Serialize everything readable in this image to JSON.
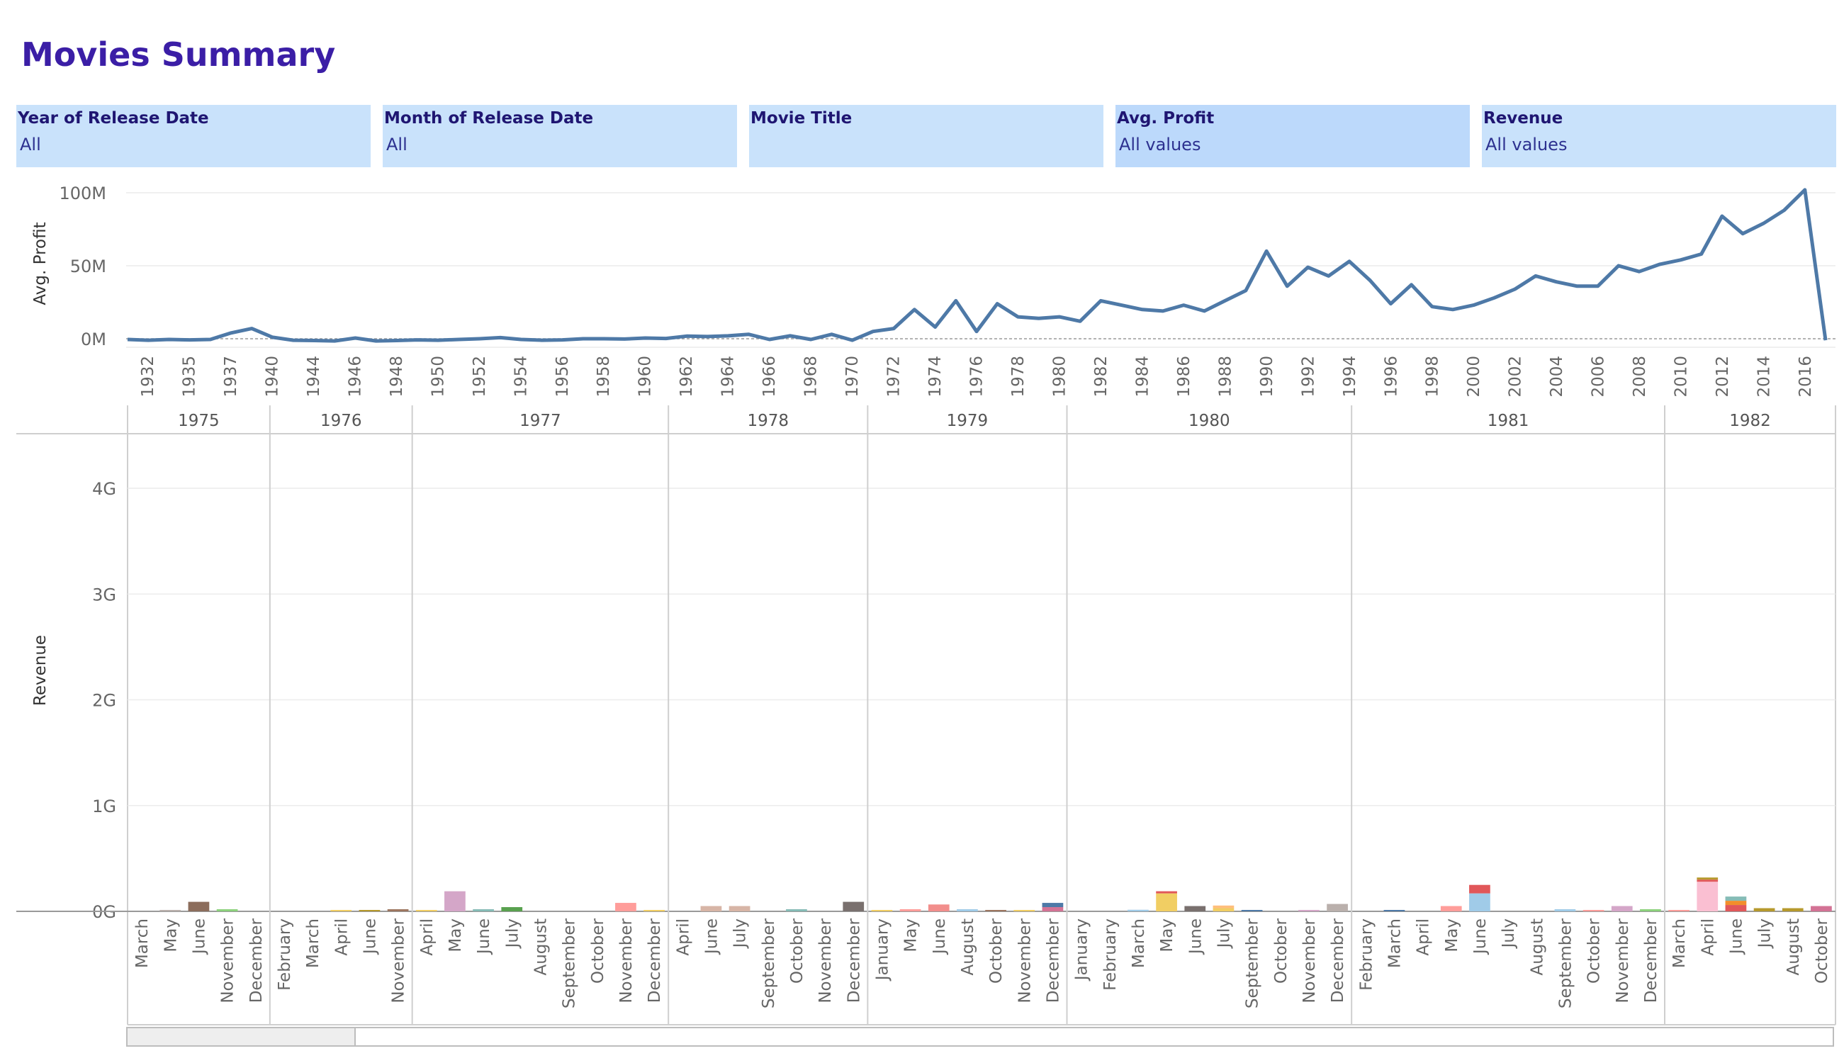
{
  "page": {
    "title": "Movies Summary"
  },
  "filters": [
    {
      "label": "Year of Release Date",
      "value": "All"
    },
    {
      "label": "Month of Release Date",
      "value": "All"
    },
    {
      "label": "Movie Title",
      "value": ""
    },
    {
      "label": "Avg. Profit",
      "value": "All values"
    },
    {
      "label": "Revenue",
      "value": "All values"
    }
  ],
  "colors": {
    "line": "#4e79a7",
    "title": "#3b1ea6",
    "filter_bg": "#c9e2fb"
  },
  "chart_data": [
    {
      "type": "line",
      "ylabel": "Avg. Profit",
      "xlabel": "",
      "ylim": [
        -2,
        105
      ],
      "yticks": [
        0,
        50,
        100
      ],
      "ytick_labels": [
        "0M",
        "50M",
        "100M"
      ],
      "xtick_labels": [
        "1932",
        "1935",
        "1937",
        "1940",
        "1944",
        "1946",
        "1948",
        "1950",
        "1952",
        "1954",
        "1956",
        "1958",
        "1960",
        "1962",
        "1964",
        "1966",
        "1968",
        "1970",
        "1972",
        "1974",
        "1976",
        "1978",
        "1980",
        "1982",
        "1984",
        "1986",
        "1988",
        "1990",
        "1992",
        "1994",
        "1996",
        "1998",
        "2000",
        "2002",
        "2004",
        "2006",
        "2008",
        "2010",
        "2012",
        "2014",
        "2016"
      ],
      "series": [
        {
          "values": [
            -0.5,
            -1,
            -0.5,
            -0.8,
            -0.5,
            4,
            7,
            1,
            -1,
            -1.2,
            -1.5,
            0.5,
            -1.5,
            -1.2,
            -0.8,
            -1,
            -0.5,
            0,
            0.8,
            -0.5,
            -1,
            -0.8,
            0,
            0,
            -0.2,
            0.5,
            0.2,
            1.8,
            1.5,
            2,
            3,
            -0.5,
            2,
            -0.5,
            3,
            -1,
            5,
            7,
            20,
            8,
            26,
            5,
            24,
            15,
            14,
            15,
            12,
            26,
            23,
            20,
            19,
            23,
            19,
            26,
            33,
            60,
            36,
            49,
            43,
            53,
            40,
            24,
            37,
            22,
            20,
            23,
            28,
            34,
            43,
            39,
            36,
            36,
            50,
            46,
            51,
            54,
            58,
            84,
            72,
            79,
            88,
            102,
            -1
          ],
          "unit": "M"
        }
      ]
    },
    {
      "type": "bar",
      "stacked": true,
      "ylabel": "Revenue",
      "ylim": [
        0,
        4.2
      ],
      "yticks": [
        0,
        1,
        2,
        3,
        4
      ],
      "ytick_labels": [
        "0G",
        "1G",
        "2G",
        "3G",
        "4G"
      ],
      "groups": [
        {
          "year": "1975",
          "months": [
            {
              "label": "March",
              "segments": []
            },
            {
              "label": "May",
              "segments": [
                {
                  "value": 0.005,
                  "color": "#bab0ac"
                }
              ]
            },
            {
              "label": "June",
              "segments": [
                {
                  "value": 0.09,
                  "color": "#8c6d5c"
                }
              ]
            },
            {
              "label": "November",
              "segments": [
                {
                  "value": 0.02,
                  "color": "#8cd17d"
                }
              ]
            },
            {
              "label": "December",
              "segments": []
            }
          ]
        },
        {
          "year": "1976",
          "months": [
            {
              "label": "February",
              "segments": []
            },
            {
              "label": "March",
              "segments": []
            },
            {
              "label": "April",
              "segments": [
                {
                  "value": 0.006,
                  "color": "#f1ce63"
                }
              ]
            },
            {
              "label": "June",
              "segments": [
                {
                  "value": 0.006,
                  "color": "#b6992d"
                }
              ]
            },
            {
              "label": "November",
              "segments": [
                {
                  "value": 0.02,
                  "color": "#9d7660"
                }
              ]
            }
          ]
        },
        {
          "year": "1977",
          "months": [
            {
              "label": "April",
              "segments": [
                {
                  "value": 0.004,
                  "color": "#f1ce63"
                }
              ]
            },
            {
              "label": "May",
              "segments": [
                {
                  "value": 0.19,
                  "color": "#d4a6c8"
                }
              ]
            },
            {
              "label": "June",
              "segments": [
                {
                  "value": 0.02,
                  "color": "#86bcb6"
                }
              ]
            },
            {
              "label": "July",
              "segments": [
                {
                  "value": 0.04,
                  "color": "#59a14f"
                }
              ]
            },
            {
              "label": "August",
              "segments": []
            },
            {
              "label": "September",
              "segments": []
            },
            {
              "label": "October",
              "segments": []
            },
            {
              "label": "November",
              "segments": [
                {
                  "value": 0.08,
                  "color": "#ff9d9a"
                }
              ]
            },
            {
              "label": "December",
              "segments": [
                {
                  "value": 0.008,
                  "color": "#f1ce63"
                }
              ]
            }
          ]
        },
        {
          "year": "1978",
          "months": [
            {
              "label": "April",
              "segments": []
            },
            {
              "label": "June",
              "segments": [
                {
                  "value": 0.05,
                  "color": "#d7b5a6"
                }
              ]
            },
            {
              "label": "July",
              "segments": [
                {
                  "value": 0.05,
                  "color": "#d7b5a6"
                }
              ]
            },
            {
              "label": "September",
              "segments": []
            },
            {
              "label": "October",
              "segments": [
                {
                  "value": 0.02,
                  "color": "#86bcb6"
                }
              ]
            },
            {
              "label": "November",
              "segments": []
            },
            {
              "label": "December",
              "segments": [
                {
                  "value": 0.09,
                  "color": "#79706e"
                }
              ]
            }
          ]
        },
        {
          "year": "1979",
          "months": [
            {
              "label": "January",
              "segments": [
                {
                  "value": 0.004,
                  "color": "#f1ce63"
                }
              ]
            },
            {
              "label": "May",
              "segments": [
                {
                  "value": 0.02,
                  "color": "#ff9d9a"
                }
              ]
            },
            {
              "label": "June",
              "segments": [
                {
                  "value": 0.065,
                  "color": "#f28e8c"
                }
              ]
            },
            {
              "label": "August",
              "segments": [
                {
                  "value": 0.02,
                  "color": "#a0cbe8"
                }
              ]
            },
            {
              "label": "October",
              "segments": [
                {
                  "value": 0.01,
                  "color": "#9d7660"
                }
              ]
            },
            {
              "label": "November",
              "segments": [
                {
                  "value": 0.01,
                  "color": "#f1ce63"
                }
              ]
            },
            {
              "label": "December",
              "segments": [
                {
                  "value": 0.04,
                  "color": "#d37295"
                },
                {
                  "value": 0.04,
                  "color": "#4e79a7"
                }
              ]
            }
          ]
        },
        {
          "year": "1980",
          "months": [
            {
              "label": "January",
              "segments": []
            },
            {
              "label": "February",
              "segments": []
            },
            {
              "label": "March",
              "segments": [
                {
                  "value": 0.015,
                  "color": "#a0cbe8"
                }
              ]
            },
            {
              "label": "May",
              "segments": [
                {
                  "value": 0.17,
                  "color": "#f1ce63"
                },
                {
                  "value": 0.02,
                  "color": "#e15759"
                }
              ]
            },
            {
              "label": "June",
              "segments": [
                {
                  "value": 0.05,
                  "color": "#79706e"
                }
              ]
            },
            {
              "label": "July",
              "segments": [
                {
                  "value": 0.03,
                  "color": "#f1ce63"
                },
                {
                  "value": 0.025,
                  "color": "#ffbe7d"
                }
              ]
            },
            {
              "label": "September",
              "segments": [
                {
                  "value": 0.01,
                  "color": "#4e79a7"
                }
              ]
            },
            {
              "label": "October",
              "segments": []
            },
            {
              "label": "November",
              "segments": [
                {
                  "value": 0.008,
                  "color": "#d4a6c8"
                }
              ]
            },
            {
              "label": "December",
              "segments": [
                {
                  "value": 0.07,
                  "color": "#bab0ac"
                }
              ]
            }
          ]
        },
        {
          "year": "1981",
          "months": [
            {
              "label": "February",
              "segments": []
            },
            {
              "label": "March",
              "segments": [
                {
                  "value": 0.01,
                  "color": "#4e79a7"
                }
              ]
            },
            {
              "label": "April",
              "segments": []
            },
            {
              "label": "May",
              "segments": [
                {
                  "value": 0.05,
                  "color": "#ff9d9a"
                }
              ]
            },
            {
              "label": "June",
              "segments": [
                {
                  "value": 0.17,
                  "color": "#a0cbe8"
                },
                {
                  "value": 0.08,
                  "color": "#e15759"
                }
              ]
            },
            {
              "label": "July",
              "segments": []
            },
            {
              "label": "August",
              "segments": []
            },
            {
              "label": "September",
              "segments": [
                {
                  "value": 0.02,
                  "color": "#a0cbe8"
                }
              ]
            },
            {
              "label": "October",
              "segments": [
                {
                  "value": 0.01,
                  "color": "#ff9d9a"
                }
              ]
            },
            {
              "label": "November",
              "segments": [
                {
                  "value": 0.05,
                  "color": "#d4a6c8"
                }
              ]
            },
            {
              "label": "December",
              "segments": [
                {
                  "value": 0.02,
                  "color": "#8cd17d"
                }
              ]
            }
          ]
        },
        {
          "year": "1982",
          "months": [
            {
              "label": "March",
              "segments": [
                {
                  "value": 0.004,
                  "color": "#ff9d9a"
                }
              ]
            },
            {
              "label": "April",
              "segments": [
                {
                  "value": 0.28,
                  "color": "#fabfd2"
                },
                {
                  "value": 0.02,
                  "color": "#e15759"
                },
                {
                  "value": 0.02,
                  "color": "#b6992d"
                }
              ]
            },
            {
              "label": "June",
              "segments": [
                {
                  "value": 0.06,
                  "color": "#e15759"
                },
                {
                  "value": 0.04,
                  "color": "#f28e2b"
                },
                {
                  "value": 0.04,
                  "color": "#86bcb6"
                }
              ]
            },
            {
              "label": "July",
              "segments": [
                {
                  "value": 0.03,
                  "color": "#b6992d"
                }
              ]
            },
            {
              "label": "August",
              "segments": [
                {
                  "value": 0.03,
                  "color": "#b6992d"
                }
              ]
            },
            {
              "label": "October",
              "segments": [
                {
                  "value": 0.05,
                  "color": "#d37295"
                }
              ]
            }
          ]
        }
      ]
    }
  ]
}
